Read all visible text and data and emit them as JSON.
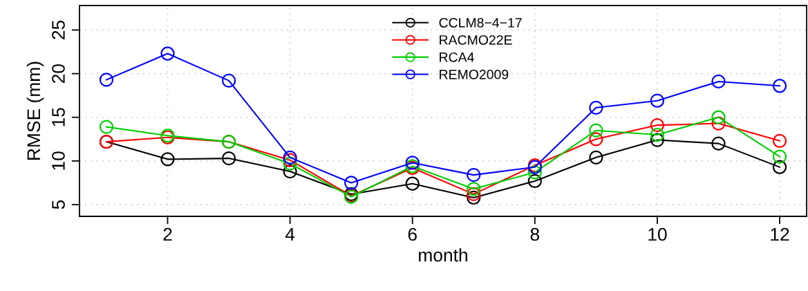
{
  "chart_data": {
    "type": "line",
    "xlabel": "month",
    "ylabel": "RMSE (mm)",
    "x": [
      1,
      2,
      3,
      4,
      5,
      6,
      7,
      8,
      9,
      10,
      11,
      12
    ],
    "series": [
      {
        "name": "CCLM8−4−17",
        "color": "#000000",
        "values": [
          12.2,
          10.2,
          10.3,
          8.8,
          6.2,
          7.4,
          5.8,
          7.7,
          10.4,
          12.4,
          12.0,
          9.3
        ]
      },
      {
        "name": "RACMO22E",
        "color": "#ff0000",
        "values": [
          12.2,
          12.7,
          12.2,
          10.1,
          6.0,
          9.2,
          6.2,
          9.5,
          12.5,
          14.1,
          14.3,
          12.3
        ]
      },
      {
        "name": "RCA4",
        "color": "#00cd00",
        "values": [
          13.9,
          12.9,
          12.2,
          9.7,
          5.9,
          9.4,
          6.8,
          8.7,
          13.5,
          13.0,
          15.0,
          10.5
        ]
      },
      {
        "name": "REMO2009",
        "color": "#0000ff",
        "values": [
          19.3,
          22.3,
          19.2,
          10.4,
          7.5,
          9.8,
          8.4,
          9.3,
          16.1,
          16.9,
          19.1,
          18.6
        ]
      }
    ],
    "xlim": [
      0.56,
      12.44
    ],
    "ylim": [
      3.66,
      27.8
    ],
    "xticks": [
      2,
      4,
      6,
      8,
      10,
      12
    ],
    "yticks": [
      5,
      10,
      15,
      20,
      25
    ],
    "grid": true,
    "legend": "top",
    "marker": "circle",
    "line_style": "solid"
  }
}
